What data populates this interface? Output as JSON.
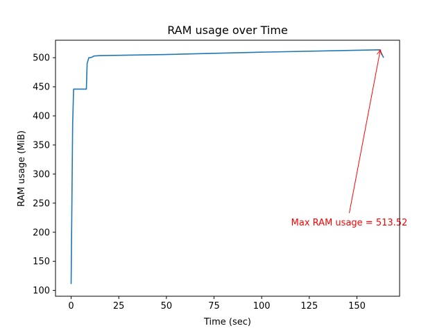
{
  "chart_data": {
    "type": "line",
    "title": "RAM usage over Time",
    "xlabel": "Time (sec)",
    "ylabel": "RAM usage (MiB)",
    "xlim": [
      -8.2,
      172.4
    ],
    "ylim": [
      90,
      530
    ],
    "xticks": [
      0,
      25,
      50,
      75,
      100,
      125,
      150
    ],
    "yticks": [
      100,
      150,
      200,
      250,
      300,
      350,
      400,
      450,
      500
    ],
    "grid": false,
    "series": [
      {
        "color": "#1f77b4",
        "x": [
          0,
          0.8,
          1.3,
          2,
          8,
          8.4,
          9.3,
          10,
          11,
          12,
          15,
          50,
          100,
          162,
          164
        ],
        "y": [
          111,
          385,
          446,
          446,
          446,
          490,
          500,
          500,
          501,
          503,
          503.5,
          505.5,
          509.5,
          513.52,
          500
        ]
      }
    ],
    "annotations": [
      {
        "text": "Max RAM usage = 513.52",
        "color": "#ff0000",
        "arrow_from": [
          146,
          233
        ],
        "arrow_to": [
          162.3,
          513.52
        ]
      }
    ]
  }
}
